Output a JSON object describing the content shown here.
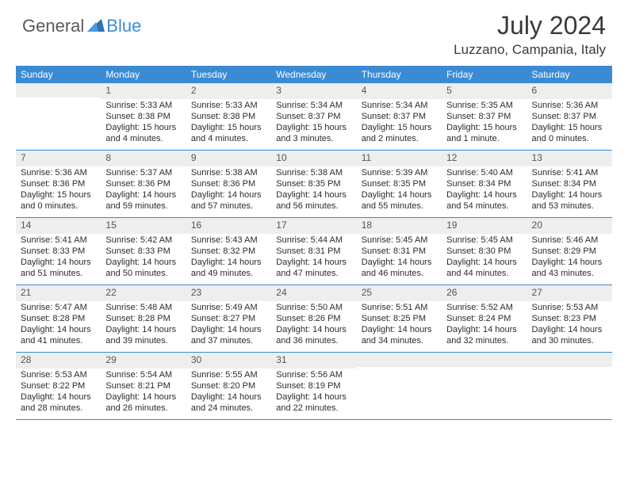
{
  "logo": {
    "general": "General",
    "blue": "Blue"
  },
  "title": "July 2024",
  "location": "Luzzano, Campania, Italy",
  "colors": {
    "header_bg": "#3b8bd4",
    "header_text": "#ffffff",
    "daynum_bg": "#eeeeee",
    "border": "#3b8bd4",
    "text": "#2c2c2c"
  },
  "daysOfWeek": [
    "Sunday",
    "Monday",
    "Tuesday",
    "Wednesday",
    "Thursday",
    "Friday",
    "Saturday"
  ],
  "weeks": [
    [
      {
        "n": "",
        "rise": "",
        "set": "",
        "dl": ""
      },
      {
        "n": "1",
        "rise": "5:33 AM",
        "set": "8:38 PM",
        "dl": "15 hours and 4 minutes."
      },
      {
        "n": "2",
        "rise": "5:33 AM",
        "set": "8:38 PM",
        "dl": "15 hours and 4 minutes."
      },
      {
        "n": "3",
        "rise": "5:34 AM",
        "set": "8:37 PM",
        "dl": "15 hours and 3 minutes."
      },
      {
        "n": "4",
        "rise": "5:34 AM",
        "set": "8:37 PM",
        "dl": "15 hours and 2 minutes."
      },
      {
        "n": "5",
        "rise": "5:35 AM",
        "set": "8:37 PM",
        "dl": "15 hours and 1 minute."
      },
      {
        "n": "6",
        "rise": "5:36 AM",
        "set": "8:37 PM",
        "dl": "15 hours and 0 minutes."
      }
    ],
    [
      {
        "n": "7",
        "rise": "5:36 AM",
        "set": "8:36 PM",
        "dl": "15 hours and 0 minutes."
      },
      {
        "n": "8",
        "rise": "5:37 AM",
        "set": "8:36 PM",
        "dl": "14 hours and 59 minutes."
      },
      {
        "n": "9",
        "rise": "5:38 AM",
        "set": "8:36 PM",
        "dl": "14 hours and 57 minutes."
      },
      {
        "n": "10",
        "rise": "5:38 AM",
        "set": "8:35 PM",
        "dl": "14 hours and 56 minutes."
      },
      {
        "n": "11",
        "rise": "5:39 AM",
        "set": "8:35 PM",
        "dl": "14 hours and 55 minutes."
      },
      {
        "n": "12",
        "rise": "5:40 AM",
        "set": "8:34 PM",
        "dl": "14 hours and 54 minutes."
      },
      {
        "n": "13",
        "rise": "5:41 AM",
        "set": "8:34 PM",
        "dl": "14 hours and 53 minutes."
      }
    ],
    [
      {
        "n": "14",
        "rise": "5:41 AM",
        "set": "8:33 PM",
        "dl": "14 hours and 51 minutes."
      },
      {
        "n": "15",
        "rise": "5:42 AM",
        "set": "8:33 PM",
        "dl": "14 hours and 50 minutes."
      },
      {
        "n": "16",
        "rise": "5:43 AM",
        "set": "8:32 PM",
        "dl": "14 hours and 49 minutes."
      },
      {
        "n": "17",
        "rise": "5:44 AM",
        "set": "8:31 PM",
        "dl": "14 hours and 47 minutes."
      },
      {
        "n": "18",
        "rise": "5:45 AM",
        "set": "8:31 PM",
        "dl": "14 hours and 46 minutes."
      },
      {
        "n": "19",
        "rise": "5:45 AM",
        "set": "8:30 PM",
        "dl": "14 hours and 44 minutes."
      },
      {
        "n": "20",
        "rise": "5:46 AM",
        "set": "8:29 PM",
        "dl": "14 hours and 43 minutes."
      }
    ],
    [
      {
        "n": "21",
        "rise": "5:47 AM",
        "set": "8:28 PM",
        "dl": "14 hours and 41 minutes."
      },
      {
        "n": "22",
        "rise": "5:48 AM",
        "set": "8:28 PM",
        "dl": "14 hours and 39 minutes."
      },
      {
        "n": "23",
        "rise": "5:49 AM",
        "set": "8:27 PM",
        "dl": "14 hours and 37 minutes."
      },
      {
        "n": "24",
        "rise": "5:50 AM",
        "set": "8:26 PM",
        "dl": "14 hours and 36 minutes."
      },
      {
        "n": "25",
        "rise": "5:51 AM",
        "set": "8:25 PM",
        "dl": "14 hours and 34 minutes."
      },
      {
        "n": "26",
        "rise": "5:52 AM",
        "set": "8:24 PM",
        "dl": "14 hours and 32 minutes."
      },
      {
        "n": "27",
        "rise": "5:53 AM",
        "set": "8:23 PM",
        "dl": "14 hours and 30 minutes."
      }
    ],
    [
      {
        "n": "28",
        "rise": "5:53 AM",
        "set": "8:22 PM",
        "dl": "14 hours and 28 minutes."
      },
      {
        "n": "29",
        "rise": "5:54 AM",
        "set": "8:21 PM",
        "dl": "14 hours and 26 minutes."
      },
      {
        "n": "30",
        "rise": "5:55 AM",
        "set": "8:20 PM",
        "dl": "14 hours and 24 minutes."
      },
      {
        "n": "31",
        "rise": "5:56 AM",
        "set": "8:19 PM",
        "dl": "14 hours and 22 minutes."
      },
      {
        "n": "",
        "rise": "",
        "set": "",
        "dl": ""
      },
      {
        "n": "",
        "rise": "",
        "set": "",
        "dl": ""
      },
      {
        "n": "",
        "rise": "",
        "set": "",
        "dl": ""
      }
    ]
  ],
  "labels": {
    "sunrise": "Sunrise:",
    "sunset": "Sunset:",
    "daylight": "Daylight:"
  }
}
